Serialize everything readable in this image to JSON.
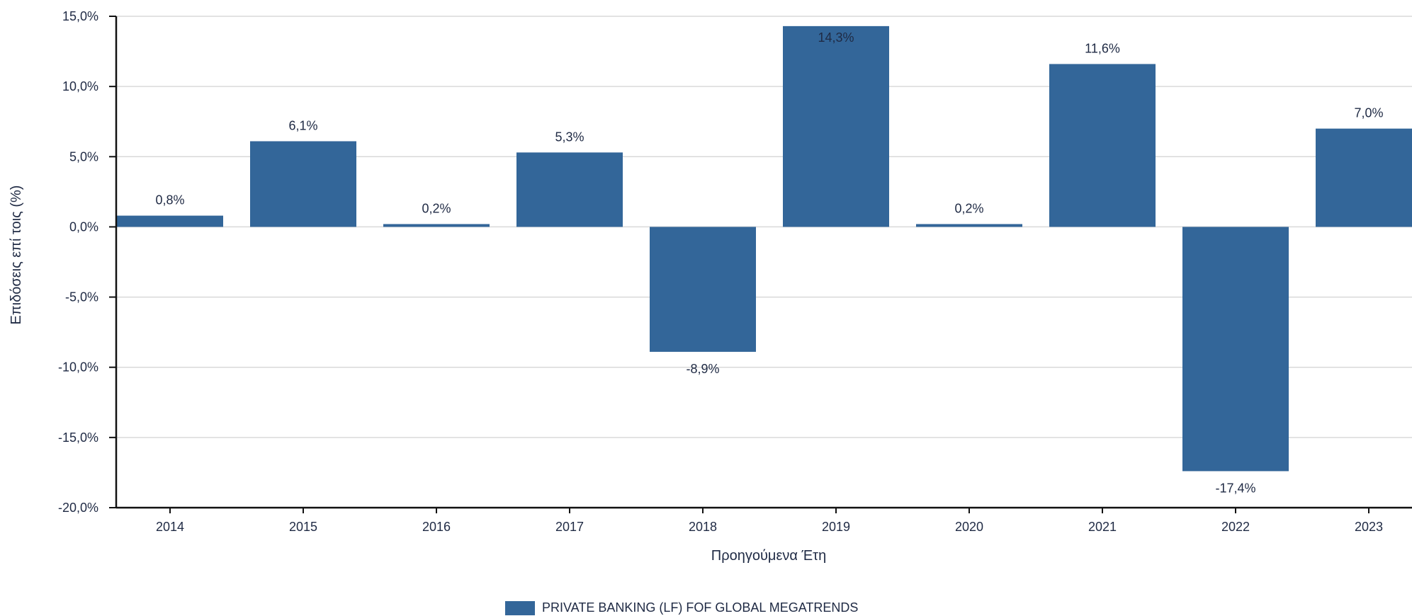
{
  "chart_data": {
    "type": "bar",
    "categories": [
      "2014",
      "2015",
      "2016",
      "2017",
      "2018",
      "2019",
      "2020",
      "2021",
      "2022",
      "2023"
    ],
    "series": [
      {
        "name": "PRIVATE BANKING (LF) FOF GLOBAL MEGATRENDS",
        "values": [
          0.8,
          6.1,
          0.2,
          5.3,
          -8.9,
          14.3,
          0.2,
          11.6,
          -17.4,
          7.0
        ],
        "labels": [
          "0,8%",
          "6,1%",
          "0,2%",
          "5,3%",
          "-8,9%",
          "14,3%",
          "0,2%",
          "11,6%",
          "-17,4%",
          "7,0%"
        ],
        "color": "#336699"
      }
    ],
    "ylabel": "Επιδόσεις επί τοις (%)",
    "xlabel": "Προηγούμενα Έτη",
    "ylim": [
      -20,
      15
    ],
    "yticks": [
      15,
      10,
      5,
      0,
      -5,
      -10,
      -15,
      -20
    ],
    "ytick_labels": [
      "15,0%",
      "10,0%",
      "5,0%",
      "0,0%",
      "-5,0%",
      "-10,0%",
      "-15,0%",
      "-20,0%"
    ],
    "grid": true,
    "legend_position": "bottom-center"
  }
}
